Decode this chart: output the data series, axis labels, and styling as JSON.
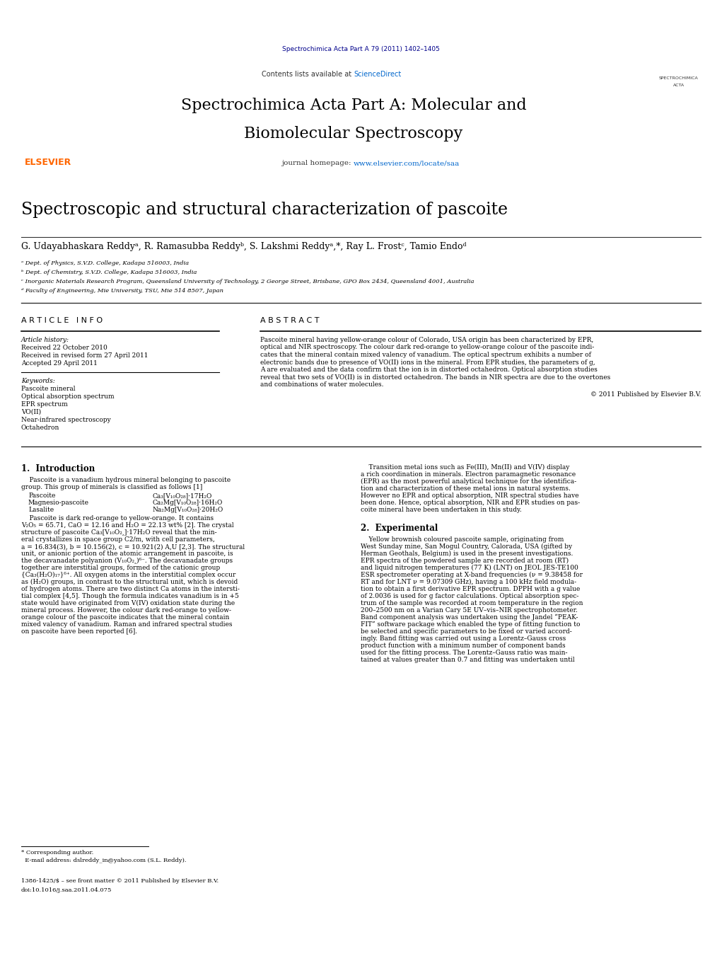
{
  "page_width": 10.21,
  "page_height": 13.51,
  "dpi": 100,
  "bg_color": "#ffffff",
  "header_journal_ref": "Spectrochimica Acta Part A 79 (2011) 1402–1405",
  "dark_navy": "#00008B",
  "elsevier_orange": "#FF6600",
  "link_blue": "#0066CC",
  "sciencedirect_blue": "#0066CC",
  "journal_header_bg": "#e0e0e0",
  "black_bar_color": "#1a1a1a",
  "journal_title_line1": "Spectrochimica Acta Part A: Molecular and",
  "journal_title_line2": "Biomolecular Spectroscopy",
  "contents_text": "Contents lists available at ",
  "sciencedirect_text": "ScienceDirect",
  "homepage_prefix": "journal homepage: ",
  "homepage_url": "www.elsevier.com/locate/saa",
  "paper_title": "Spectroscopic and structural characterization of pascoite",
  "authors_line": "G. Udayabhaskara Reddyᵃ, R. Ramasubba Reddyᵇ, S. Lakshmi Reddyᵃ,*, Ray L. Frostᶜ, Tamio Endoᵈ",
  "affil_a": "ᵃ Dept. of Physics, S.V.D. College, Kadapa 516003, India",
  "affil_b": "ᵇ Dept. of Chemistry, S.V.D. College, Kadapa 516003, India",
  "affil_c": "ᶜ Inorganic Materials Research Program, Queensland University of Technology, 2 George Street, Brisbane, GPO Box 2434, Queensland 4001, Australia",
  "affil_d": "ᵈ Faculty of Engineering, Mie University, TSU, Mie 514 8507, Japan",
  "article_info_header": "A R T I C L E   I N F O",
  "abstract_header": "A B S T R A C T",
  "article_history_label": "Article history:",
  "received": "Received 22 October 2010",
  "revised": "Received in revised form 27 April 2011",
  "accepted": "Accepted 29 April 2011",
  "keywords_label": "Keywords:",
  "keywords": [
    "Pascoite mineral",
    "Optical absorption spectrum",
    "EPR spectrum",
    "VO(II)",
    "Near-infrared spectroscopy",
    "Octahedron"
  ],
  "abstract_lines": [
    "Pascoite mineral having yellow-orange colour of Colorado, USA origin has been characterized by EPR,",
    "optical and NIR spectroscopy. The colour dark red-orange to yellow-orange colour of the pascoite indi-",
    "cates that the mineral contain mixed valency of vanadium. The optical spectrum exhibits a number of",
    "electronic bands due to presence of VO(II) ions in the mineral. From EPR studies, the parameters of g,",
    "A are evaluated and the data confirm that the ion is in distorted octahedron. Optical absorption studies",
    "reveal that two sets of VO(II) is in distorted octahedron. The bands in NIR spectra are due to the overtones",
    "and combinations of water molecules."
  ],
  "copyright": "© 2011 Published by Elsevier B.V.",
  "intro_section": "1.  Introduction",
  "intro_para1_lines": [
    "    Pascoite is a vanadium hydrous mineral belonging to pascoite",
    "group. This group of minerals is classified as follows [1]"
  ],
  "minerals": [
    [
      "Pascoite",
      "Ca₃[V₁₀O₂₈]·17H₂O"
    ],
    [
      "Magnesio-pascoite",
      "Ca₂Mg[V₁₀O₂₈]·16H₂O"
    ],
    [
      "Lasalite",
      "Na₂Mg[V₁₀O₂₈]·20H₂O"
    ]
  ],
  "intro_para2_lines": [
    "    Pascoite is dark red-orange to yellow-orange. It contains",
    "V₂O₅ = 65.71, CaO = 12.16 and H₂O = 22.13 wt% [2]. The crystal",
    "structure of pascoite Ca₃[V₁₀O₂‸]·17H₂O reveal that the min-",
    "eral crystallizes in space group C2/m, with cell parameters,",
    "a = 16.834(3), b = 10.156(2), c = 10.921(2) A,U [2,3]. The structural",
    "unit, or anionic portion of the atomic arrangement in pascoite, is",
    "the decavanadate polyanion (V₁₀O₂‸)⁶⁻. The decavanadate groups",
    "together are interstitial groups, formed of the cationic group",
    "{Ca₃(H₂O)₁₇}⁶⁺. All oxygen atoms in the interstitial complex occur",
    "as (H₂O) groups, in contrast to the structural unit, which is devoid",
    "of hydrogen atoms. There are two distinct Ca atoms in the intersti-",
    "tial complex [4,5]. Though the formula indicates vanadium is in +5",
    "state would have originated from V(IV) oxidation state during the",
    "mineral process. However, the colour dark red-orange to yellow-",
    "orange colour of the pascoite indicates that the mineral contain",
    "mixed valency of vanadium. Raman and infrared spectral studies",
    "on pascoite have been reported [6]."
  ],
  "right_intro_lines": [
    "    Transition metal ions such as Fe(III), Mn(II) and V(IV) display",
    "a rich coordination in minerals. Electron paramagnetic resonance",
    "(EPR) as the most powerful analytical technique for the identifica-",
    "tion and characterization of these metal ions in natural systems.",
    "However no EPR and optical absorption, NIR spectral studies have",
    "been done. Hence, optical absorption, NIR and EPR studies on pas-",
    "coite mineral have been undertaken in this study."
  ],
  "experimental_section": "2.  Experimental",
  "experimental_lines": [
    "    Yellow brownish coloured pascoite sample, originating from",
    "West Sunday mine, San Mogul Country, Calorada, USA (gifted by",
    "Herman Geothals, Belgium) is used in the present investigations.",
    "EPR spectra of the powdered sample are recorded at room (RT)",
    "and liquid nitrogen temperatures (77 K) (LNT) on JEOL JES-TE100",
    "ESR spectrometer operating at X-band frequencies (ν = 9.38458 for",
    "RT and for LNT ν = 9.07309 GHz), having a 100 kHz field modula-",
    "tion to obtain a first derivative EPR spectrum. DPPH with a g value",
    "of 2.0036 is used for g factor calculations. Optical absorption spec-",
    "trum of the sample was recorded at room temperature in the region",
    "200–2500 nm on a Varian Cary 5E UV–vis–NIR spectrophotometer.",
    "Band component analysis was undertaken using the Jandel “PEAK-",
    "FIT” software package which enabled the type of fitting function to",
    "be selected and specific parameters to be fixed or varied accord-",
    "ingly. Band fitting was carried out using a Lorentz–Gauss cross",
    "product function with a minimum number of component bands",
    "used for the fitting process. The Lorentz–Gauss ratio was main-",
    "tained at values greater than 0.7 and fitting was undertaken until"
  ],
  "footnote_star": "* Corresponding author.",
  "footnote_email": "  E-mail address: dslreddy_in@yahoo.com (S.L. Reddy).",
  "issn_line": "1386-1425/$ – see front matter © 2011 Published by Elsevier B.V.",
  "doi_line": "doi:10.1016/j.saa.2011.04.075"
}
